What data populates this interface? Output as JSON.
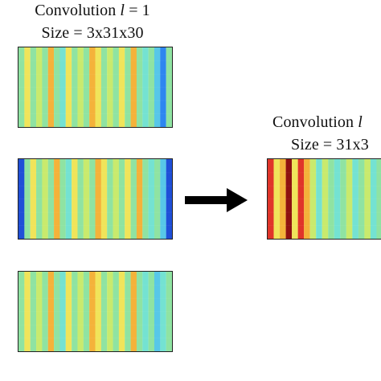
{
  "input_group": {
    "title_prefix": "Convolution ",
    "title_var": "l",
    "title_suffix": " = 1",
    "size_label": "Size = 3x31x30"
  },
  "output_group": {
    "title_prefix": "Convolution ",
    "title_var": "l",
    "size_label": "Size = 31x3"
  },
  "icons": {
    "arrow": "right-arrow-icon"
  },
  "colormap": {
    "deep_blue": "#1f4fd8",
    "blue": "#2e86f0",
    "light_blue": "#57c7e8",
    "cyan": "#74e2d2",
    "green": "#8fe3a2",
    "yellow_green": "#c9ea6d",
    "yellow": "#f0e45a",
    "orange": "#f4b23a",
    "red": "#e0352a",
    "dark_red": "#8e1010"
  },
  "panels": [
    {
      "id": "panel-1",
      "columns": [
        "green",
        "yellow",
        "green",
        "yellow_green",
        "green",
        "orange",
        "green",
        "cyan",
        "yellow",
        "green",
        "yellow_green",
        "green",
        "orange",
        "yellow",
        "green",
        "yellow_green",
        "green",
        "yellow",
        "green",
        "orange",
        "green",
        "cyan",
        "green",
        "light_blue",
        "blue",
        "green"
      ]
    },
    {
      "id": "panel-2",
      "columns": [
        "deep_blue",
        "green",
        "yellow",
        "green",
        "yellow_green",
        "green",
        "orange",
        "green",
        "cyan",
        "yellow",
        "green",
        "yellow_green",
        "green",
        "orange",
        "yellow",
        "green",
        "yellow_green",
        "green",
        "yellow",
        "green",
        "orange",
        "green",
        "cyan",
        "green",
        "light_blue",
        "deep_blue"
      ]
    },
    {
      "id": "panel-3",
      "columns": [
        "green",
        "yellow",
        "green",
        "yellow_green",
        "green",
        "orange",
        "green",
        "cyan",
        "yellow",
        "green",
        "yellow_green",
        "green",
        "orange",
        "yellow",
        "green",
        "yellow_green",
        "green",
        "yellow",
        "green",
        "orange",
        "green",
        "cyan",
        "green",
        "light_blue",
        "cyan",
        "green"
      ]
    },
    {
      "id": "panel-out",
      "columns": [
        "red",
        "yellow",
        "orange",
        "dark_red",
        "yellow",
        "red",
        "orange",
        "yellow_green",
        "cyan",
        "yellow_green",
        "green",
        "cyan",
        "green",
        "yellow_green",
        "cyan",
        "green",
        "yellow_green",
        "cyan",
        "green",
        "yellow_green",
        "green"
      ]
    }
  ]
}
